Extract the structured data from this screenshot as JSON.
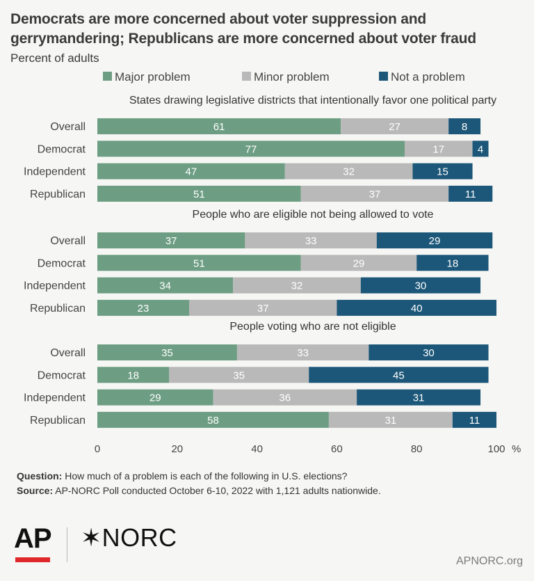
{
  "title": "Democrats are more concerned about voter suppression and gerrymandering; Republicans are more concerned about voter fraud",
  "subtitle": "Percent of adults",
  "footer": {
    "question_label": "Question:",
    "question_text": "How much of a problem is each of the following in U.S. elections?",
    "source_label": "Source:",
    "source_text": "AP-NORC Poll conducted October 6-10, 2022 with 1,121 adults nationwide."
  },
  "logos": {
    "ap": "AP",
    "norc": "NORC",
    "url": "APNORC.org"
  },
  "colors": {
    "major": "#6d9e83",
    "minor": "#b9b9b9",
    "not": "#1c5779",
    "ap_red": "#e0272a"
  },
  "chart_data": {
    "type": "bar",
    "orientation": "horizontal",
    "stacked": true,
    "legend": [
      "Major problem",
      "Minor problem",
      "Not a problem"
    ],
    "legend_position": "top",
    "xlim": [
      0,
      100
    ],
    "xticks": [
      0,
      20,
      40,
      60,
      80,
      100
    ],
    "xunit": "%",
    "grid": false,
    "groups": [
      {
        "title": "States drawing legislative districts that intentionally favor one political party",
        "rows": [
          {
            "label": "Overall",
            "values": [
              61,
              27,
              8
            ]
          },
          {
            "label": "Democrat",
            "values": [
              77,
              17,
              4
            ]
          },
          {
            "label": "Independent",
            "values": [
              47,
              32,
              15
            ]
          },
          {
            "label": "Republican",
            "values": [
              51,
              37,
              11
            ]
          }
        ]
      },
      {
        "title": "People who are eligible not being allowed to vote",
        "rows": [
          {
            "label": "Overall",
            "values": [
              37,
              33,
              29
            ]
          },
          {
            "label": "Democrat",
            "values": [
              51,
              29,
              18
            ]
          },
          {
            "label": "Independent",
            "values": [
              34,
              32,
              30
            ]
          },
          {
            "label": "Republican",
            "values": [
              23,
              37,
              40
            ]
          }
        ]
      },
      {
        "title": "People voting who are not eligible",
        "rows": [
          {
            "label": "Overall",
            "values": [
              35,
              33,
              30
            ]
          },
          {
            "label": "Democrat",
            "values": [
              18,
              35,
              45
            ]
          },
          {
            "label": "Independent",
            "values": [
              29,
              36,
              31
            ]
          },
          {
            "label": "Republican",
            "values": [
              58,
              31,
              11
            ]
          }
        ]
      }
    ]
  }
}
